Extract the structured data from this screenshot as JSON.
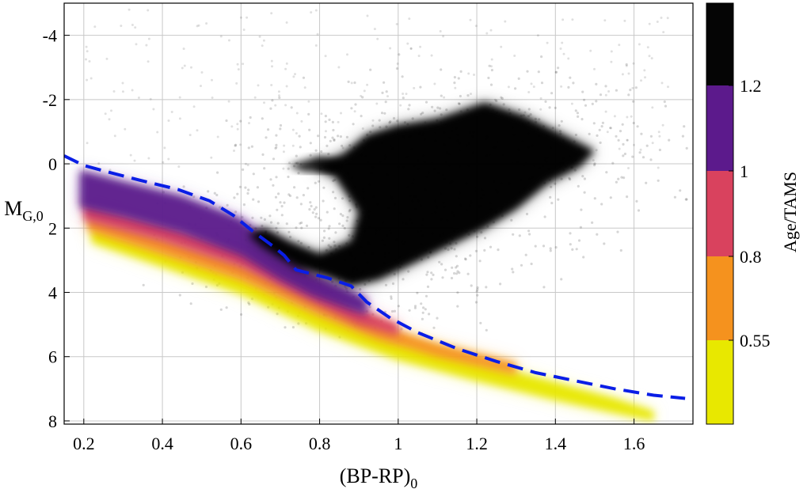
{
  "chart_data": {
    "type": "scatter",
    "title": "",
    "xlabel": {
      "main": "(BP-RP)",
      "sub": "0"
    },
    "ylabel": {
      "main": "M",
      "sub": "G,0"
    },
    "xlim": [
      0.15,
      1.75
    ],
    "ylim": [
      8.1,
      -5.0
    ],
    "y_inverted": true,
    "grid": true,
    "x_ticks": [
      0.2,
      0.4,
      0.6,
      0.8,
      1.0,
      1.2,
      1.4,
      1.6
    ],
    "x_tick_labels": [
      "0.2",
      "0.4",
      "0.6",
      "0.8",
      "1",
      "1.2",
      "1.4",
      "1.6"
    ],
    "y_ticks": [
      -4,
      -2,
      0,
      2,
      4,
      6,
      8
    ],
    "y_tick_labels": [
      "-4",
      "-2",
      "0",
      "2",
      "4",
      "6",
      "8"
    ],
    "colorbar": {
      "title": "Age/TAMS",
      "bands": [
        {
          "from": 0.3,
          "to": 0.55,
          "color": "#e8e800"
        },
        {
          "from": 0.55,
          "to": 0.8,
          "color": "#f5921e"
        },
        {
          "from": 0.8,
          "to": 1.0,
          "color": "#d9425e"
        },
        {
          "from": 1.0,
          "to": 1.2,
          "color": "#5c1a8c"
        },
        {
          "from": 1.2,
          "to": 1.5,
          "color": "#050505"
        }
      ],
      "ticks": [
        0.55,
        0.8,
        1.0,
        1.2
      ],
      "tick_labels": [
        "0.55",
        "0.8",
        "1",
        "1.2"
      ]
    },
    "series": [
      {
        "kind": "density-ribbon",
        "color_by": "age_over_tams",
        "layers": [
          {
            "age_band": "0.3-0.55",
            "color": "#e8e800",
            "upper": [
              [
                0.22,
                1.95
              ],
              [
                0.4,
                2.7
              ],
              [
                0.6,
                3.5
              ],
              [
                0.8,
                4.6
              ],
              [
                1.0,
                5.5
              ],
              [
                1.2,
                6.15
              ],
              [
                1.4,
                6.8
              ],
              [
                1.55,
                7.3
              ],
              [
                1.65,
                7.7
              ]
            ],
            "lower": [
              [
                0.22,
                2.45
              ],
              [
                0.4,
                3.2
              ],
              [
                0.6,
                4.05
              ],
              [
                0.8,
                5.2
              ],
              [
                1.0,
                6.1
              ],
              [
                1.2,
                6.75
              ],
              [
                1.4,
                7.35
              ],
              [
                1.55,
                7.75
              ],
              [
                1.65,
                8.0
              ]
            ]
          },
          {
            "age_band": "0.55-0.8",
            "color": "#f5921e",
            "upper": [
              [
                0.21,
                1.65
              ],
              [
                0.4,
                2.3
              ],
              [
                0.6,
                3.1
              ],
              [
                0.8,
                4.25
              ],
              [
                0.95,
                5.0
              ],
              [
                1.1,
                5.6
              ],
              [
                1.3,
                6.2
              ]
            ],
            "lower": [
              [
                0.21,
                2.05
              ],
              [
                0.4,
                2.8
              ],
              [
                0.6,
                3.6
              ],
              [
                0.8,
                4.7
              ],
              [
                0.95,
                5.45
              ],
              [
                1.1,
                6.0
              ],
              [
                1.3,
                6.55
              ]
            ]
          },
          {
            "age_band": "0.8-1",
            "color": "#d9425e",
            "upper": [
              [
                0.2,
                1.2
              ],
              [
                0.4,
                1.85
              ],
              [
                0.6,
                2.6
              ],
              [
                0.75,
                3.4
              ],
              [
                0.9,
                4.5
              ],
              [
                1.0,
                5.0
              ]
            ],
            "lower": [
              [
                0.2,
                1.75
              ],
              [
                0.4,
                2.4
              ],
              [
                0.6,
                3.2
              ],
              [
                0.75,
                4.1
              ],
              [
                0.9,
                5.0
              ],
              [
                1.0,
                5.35
              ]
            ]
          },
          {
            "age_band": "1-1.2",
            "color": "#5c1a8c",
            "upper": [
              [
                0.19,
                0.2
              ],
              [
                0.3,
                0.55
              ],
              [
                0.45,
                1.0
              ],
              [
                0.6,
                1.7
              ],
              [
                0.7,
                2.6
              ],
              [
                0.78,
                3.4
              ],
              [
                0.88,
                3.95
              ],
              [
                0.92,
                4.2
              ]
            ],
            "lower": [
              [
                0.19,
                1.35
              ],
              [
                0.3,
                1.65
              ],
              [
                0.45,
                2.15
              ],
              [
                0.6,
                2.85
              ],
              [
                0.7,
                3.6
              ],
              [
                0.78,
                4.1
              ],
              [
                0.88,
                4.55
              ],
              [
                0.92,
                4.7
              ]
            ]
          }
        ]
      },
      {
        "kind": "density-cloud",
        "name": "",
        "color": "#000000",
        "core_polygon": [
          [
            0.78,
            0.1
          ],
          [
            0.86,
            -0.3
          ],
          [
            0.92,
            -0.9
          ],
          [
            1.0,
            -1.2
          ],
          [
            1.1,
            -1.4
          ],
          [
            1.22,
            -1.9
          ],
          [
            1.32,
            -1.5
          ],
          [
            1.42,
            -0.9
          ],
          [
            1.5,
            -0.4
          ],
          [
            1.46,
            0.1
          ],
          [
            1.38,
            0.6
          ],
          [
            1.3,
            1.4
          ],
          [
            1.22,
            2.0
          ],
          [
            1.12,
            2.6
          ],
          [
            1.02,
            3.2
          ],
          [
            0.95,
            3.6
          ],
          [
            0.88,
            3.8
          ],
          [
            0.82,
            3.5
          ],
          [
            0.74,
            3.2
          ],
          [
            0.66,
            2.6
          ],
          [
            0.62,
            2.2
          ],
          [
            0.66,
            2.0
          ],
          [
            0.72,
            2.4
          ],
          [
            0.8,
            2.8
          ],
          [
            0.88,
            2.4
          ],
          [
            0.9,
            1.5
          ],
          [
            0.84,
            0.4
          ]
        ]
      },
      {
        "kind": "line",
        "name": "",
        "color": "#0a1ee6",
        "dashed": true,
        "x": [
          0.15,
          0.2,
          0.26,
          0.34,
          0.44,
          0.52,
          0.58,
          0.63,
          0.68,
          0.71,
          0.74,
          0.82,
          0.88,
          0.92,
          0.98,
          1.05,
          1.15,
          1.25,
          1.35,
          1.45,
          1.55,
          1.65,
          1.73
        ],
        "y": [
          -0.25,
          0.05,
          0.25,
          0.5,
          0.8,
          1.15,
          1.6,
          2.1,
          2.55,
          2.85,
          3.3,
          3.55,
          3.8,
          4.3,
          4.8,
          5.25,
          5.75,
          6.15,
          6.5,
          6.75,
          7.0,
          7.2,
          7.3
        ]
      }
    ]
  }
}
